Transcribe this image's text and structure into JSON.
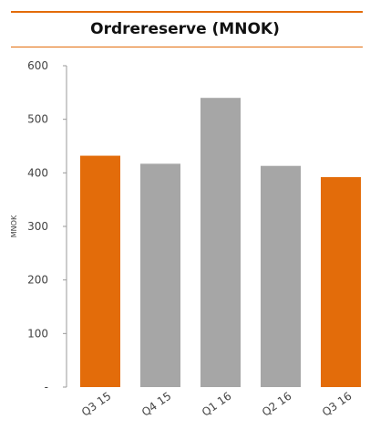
{
  "chart_data": {
    "type": "bar",
    "title": "Ordrereserve (MNOK)",
    "ylabel": "MNOK",
    "xlabel": "",
    "categories": [
      "Q3 15",
      "Q4 15",
      "Q1 16",
      "Q2 16",
      "Q3 16"
    ],
    "values": [
      432,
      417,
      540,
      413,
      392
    ],
    "highlight": [
      true,
      false,
      false,
      false,
      true
    ],
    "ylim": [
      0,
      600
    ],
    "yticks": [
      0,
      100,
      200,
      300,
      400,
      500,
      600
    ],
    "ytick_labels": [
      "-",
      "100",
      "200",
      "300",
      "400",
      "500",
      "600"
    ],
    "grid": false,
    "colors": {
      "highlight": "#e36c0a",
      "default": "#a6a6a6",
      "accent_rule": "#e36c0a"
    }
  }
}
